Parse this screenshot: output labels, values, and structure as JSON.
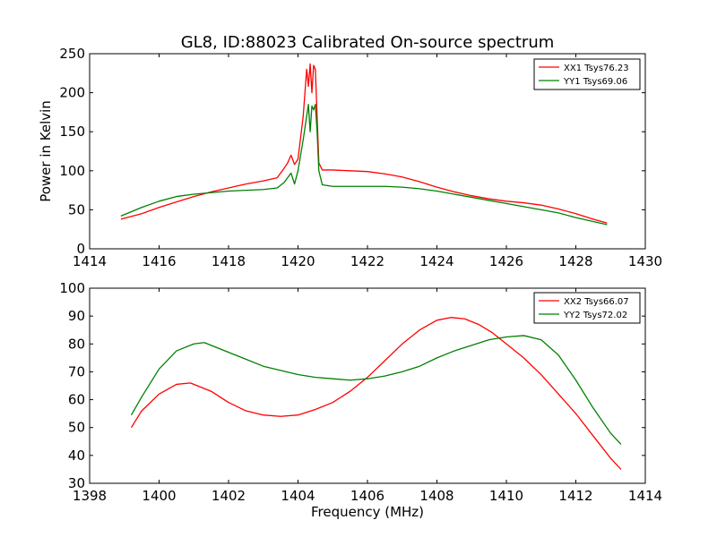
{
  "figure": {
    "title": "GL8, ID:88023 Calibrated On-source spectrum",
    "ylabel": "Power in Kelvin",
    "xlabel": "Frequency (MHz)"
  },
  "colors": {
    "red": "#ff0000",
    "green": "#008000"
  },
  "chart_data": [
    {
      "type": "line",
      "title": "GL8, ID:88023 Calibrated On-source spectrum",
      "ylabel": "Power in Kelvin",
      "xlabel": "",
      "xlim": [
        1414,
        1430
      ],
      "ylim": [
        0,
        250
      ],
      "xticks": [
        "1414",
        "1416",
        "1418",
        "1420",
        "1422",
        "1424",
        "1426",
        "1428",
        "1430"
      ],
      "yticks": [
        "0",
        "50",
        "100",
        "150",
        "200",
        "250"
      ],
      "grid": false,
      "legend": "top-right",
      "series": [
        {
          "name": "XX1 Tsys76.23",
          "color": "#ff0000",
          "x": [
            1414.9,
            1415.5,
            1416.0,
            1416.5,
            1417.0,
            1417.5,
            1418.0,
            1418.5,
            1419.0,
            1419.4,
            1419.55,
            1419.7,
            1419.8,
            1419.9,
            1420.0,
            1420.15,
            1420.25,
            1420.3,
            1420.35,
            1420.4,
            1420.45,
            1420.5,
            1420.55,
            1420.6,
            1420.7,
            1421.0,
            1421.5,
            1422.0,
            1422.5,
            1423.0,
            1423.5,
            1424.0,
            1424.5,
            1425.0,
            1425.5,
            1426.0,
            1426.5,
            1427.0,
            1427.5,
            1428.0,
            1428.5,
            1428.9
          ],
          "y": [
            38,
            45,
            53,
            60,
            67,
            73,
            78,
            83,
            87,
            91,
            100,
            110,
            120,
            108,
            115,
            170,
            230,
            208,
            237,
            200,
            235,
            230,
            170,
            110,
            101,
            101,
            100,
            99,
            96,
            92,
            86,
            79,
            73,
            68,
            64,
            61,
            59,
            56,
            51,
            45,
            38,
            33
          ]
        },
        {
          "name": "YY1 Tsys69.06",
          "color": "#008000",
          "x": [
            1414.9,
            1415.5,
            1416.0,
            1416.5,
            1417.0,
            1417.5,
            1418.0,
            1418.5,
            1419.0,
            1419.4,
            1419.6,
            1419.8,
            1419.9,
            1420.0,
            1420.15,
            1420.25,
            1420.3,
            1420.35,
            1420.4,
            1420.45,
            1420.5,
            1420.55,
            1420.6,
            1420.7,
            1421.0,
            1421.5,
            1422.0,
            1422.5,
            1423.0,
            1423.5,
            1424.0,
            1424.5,
            1425.0,
            1425.5,
            1426.0,
            1426.5,
            1427.0,
            1427.5,
            1428.0,
            1428.5,
            1428.9
          ],
          "y": [
            42,
            53,
            61,
            67,
            70,
            72,
            74,
            75,
            76,
            78,
            85,
            97,
            83,
            100,
            140,
            170,
            185,
            150,
            183,
            178,
            185,
            150,
            100,
            82,
            80,
            80,
            80,
            80,
            79,
            77,
            74,
            70,
            66,
            62,
            58,
            54,
            50,
            46,
            40,
            35,
            31
          ]
        }
      ]
    },
    {
      "type": "line",
      "title": "",
      "ylabel": "",
      "xlabel": "Frequency (MHz)",
      "xlim": [
        1398,
        1414
      ],
      "ylim": [
        30,
        100
      ],
      "xticks": [
        "1398",
        "1400",
        "1402",
        "1404",
        "1406",
        "1408",
        "1410",
        "1412",
        "1414"
      ],
      "yticks": [
        "30",
        "40",
        "50",
        "60",
        "70",
        "80",
        "90",
        "100"
      ],
      "grid": false,
      "legend": "top-right",
      "series": [
        {
          "name": "XX2 Tsys66.07",
          "color": "#ff0000",
          "x": [
            1399.2,
            1399.5,
            1400.0,
            1400.5,
            1400.9,
            1401.5,
            1402.0,
            1402.5,
            1403.0,
            1403.5,
            1404.0,
            1404.5,
            1405.0,
            1405.5,
            1406.0,
            1406.5,
            1407.0,
            1407.5,
            1408.0,
            1408.4,
            1408.8,
            1409.2,
            1409.6,
            1410.0,
            1410.5,
            1411.0,
            1411.5,
            1412.0,
            1412.5,
            1413.0,
            1413.3
          ],
          "y": [
            50,
            56,
            62,
            65.5,
            66,
            63,
            59,
            56,
            54.5,
            54,
            54.5,
            56.5,
            59,
            63,
            68,
            74,
            80,
            85,
            88.5,
            89.5,
            89,
            87,
            84,
            80,
            75,
            69,
            62,
            55,
            47,
            39,
            35
          ]
        },
        {
          "name": "YY2 Tsys72.02",
          "color": "#008000",
          "x": [
            1399.2,
            1399.5,
            1400.0,
            1400.5,
            1401.0,
            1401.3,
            1402.0,
            1402.5,
            1403.0,
            1403.5,
            1404.0,
            1404.5,
            1405.0,
            1405.5,
            1406.0,
            1406.5,
            1407.0,
            1407.5,
            1408.0,
            1408.5,
            1409.0,
            1409.5,
            1410.0,
            1410.5,
            1411.0,
            1411.5,
            1412.0,
            1412.5,
            1413.0,
            1413.3
          ],
          "y": [
            54.5,
            61,
            71,
            77.5,
            80,
            80.5,
            77,
            74.5,
            72,
            70.5,
            69,
            68,
            67.5,
            67,
            67.5,
            68.5,
            70,
            72,
            75,
            77.5,
            79.5,
            81.5,
            82.5,
            83,
            81.5,
            76,
            67,
            57,
            48,
            44
          ]
        }
      ]
    }
  ]
}
